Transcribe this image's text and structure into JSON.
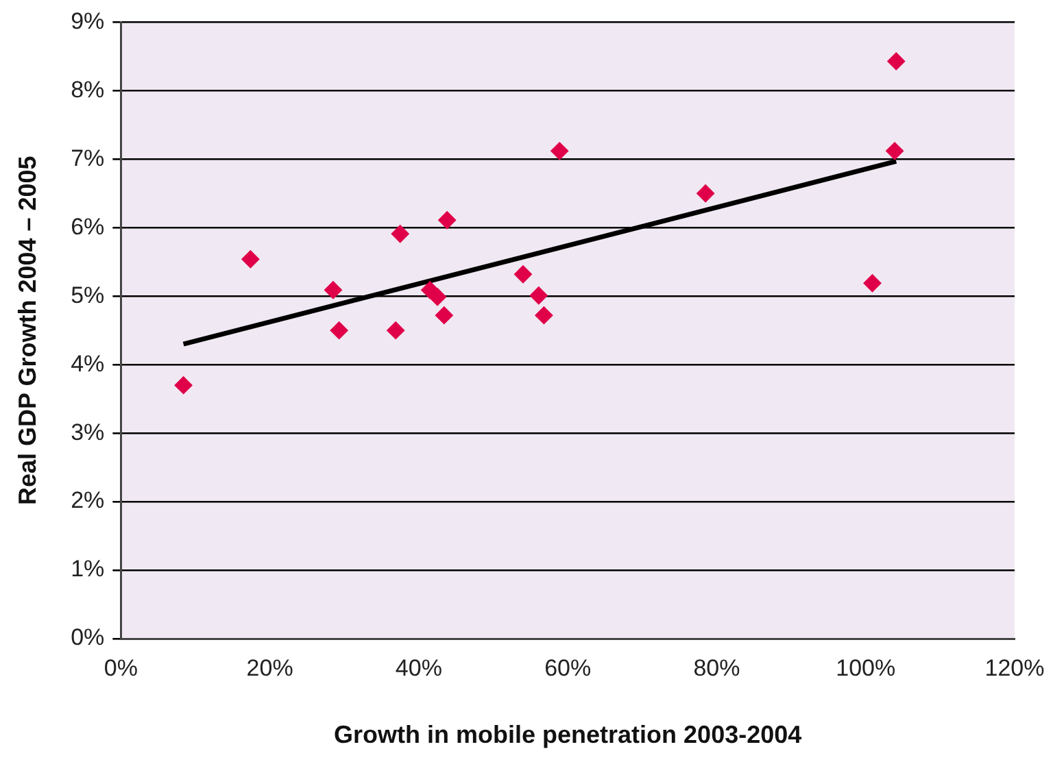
{
  "chart_data": {
    "type": "scatter",
    "xlabel": "Growth in mobile penetration 2003-2004",
    "ylabel": "Real GDP Growth 2004 – 2005",
    "x": [
      8.4,
      17.4,
      28.5,
      29.3,
      36.9,
      37.5,
      41.5,
      42.5,
      43.4,
      43.8,
      54.0,
      56.1,
      56.8,
      58.9,
      78.5,
      100.9,
      103.9,
      104.1
    ],
    "series": [
      {
        "type": "scatter",
        "color": "#e0004a",
        "marker": "diamond",
        "values": [
          3.7,
          5.54,
          5.09,
          4.5,
          4.5,
          5.91,
          5.09,
          4.99,
          4.72,
          6.11,
          5.32,
          5.01,
          4.72,
          7.12,
          6.5,
          5.19,
          7.12,
          8.43
        ]
      },
      {
        "type": "line",
        "color": "#000000",
        "marker": "none",
        "x": [
          8.4,
          104.1
        ],
        "values": [
          4.3,
          6.97
        ]
      }
    ],
    "xlim": [
      0,
      120
    ],
    "xticks": [
      {
        "value": 0,
        "label": "0%"
      },
      {
        "value": 20,
        "label": "20%"
      },
      {
        "value": 40,
        "label": "40%"
      },
      {
        "value": 60,
        "label": "60%"
      },
      {
        "value": 80,
        "label": "80%"
      },
      {
        "value": 100,
        "label": "100%"
      },
      {
        "value": 120,
        "label": "120%"
      }
    ],
    "ylim": [
      0,
      9
    ],
    "yticks": [
      {
        "value": 0,
        "label": "0%"
      },
      {
        "value": 1,
        "label": "1%"
      },
      {
        "value": 2,
        "label": "2%"
      },
      {
        "value": 3,
        "label": "3%"
      },
      {
        "value": 4,
        "label": "4%"
      },
      {
        "value": 5,
        "label": "5%"
      },
      {
        "value": 6,
        "label": "6%"
      },
      {
        "value": 7,
        "label": "7%"
      },
      {
        "value": 8,
        "label": "8%"
      },
      {
        "value": 9,
        "label": "9%"
      }
    ],
    "grid": "y",
    "legend": false
  }
}
